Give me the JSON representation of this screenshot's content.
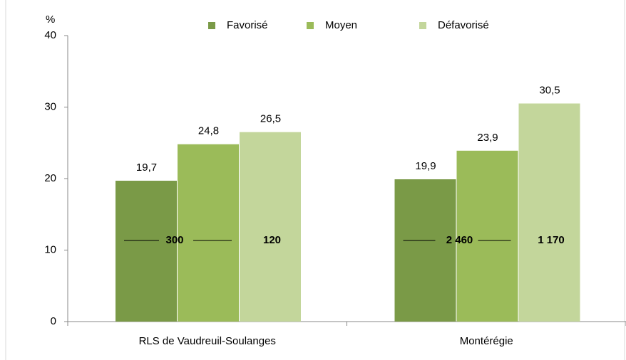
{
  "chart_data": {
    "type": "bar",
    "ylabel": "%",
    "categories": [
      "RLS de Vaudreuil-Soulanges",
      "Montérégie"
    ],
    "series": [
      {
        "name": "Favorisé",
        "color": "#7a9a47",
        "values": [
          19.7,
          19.9
        ],
        "value_labels": [
          "19,7",
          "19,9"
        ]
      },
      {
        "name": "Moyen",
        "color": "#9bbb59",
        "values": [
          24.8,
          23.9
        ],
        "value_labels": [
          "24,8",
          "23,9"
        ]
      },
      {
        "name": "Défavorisé",
        "color": "#c3d69b",
        "values": [
          26.5,
          30.5
        ],
        "value_labels": [
          "26,5",
          "30,5"
        ]
      }
    ],
    "annotations": [
      [
        "300",
        "120"
      ],
      [
        "2 460",
        "1 170"
      ]
    ],
    "ylim": [
      0,
      40
    ],
    "yticks": [
      0,
      10,
      20,
      30,
      40
    ],
    "legend": "top"
  }
}
